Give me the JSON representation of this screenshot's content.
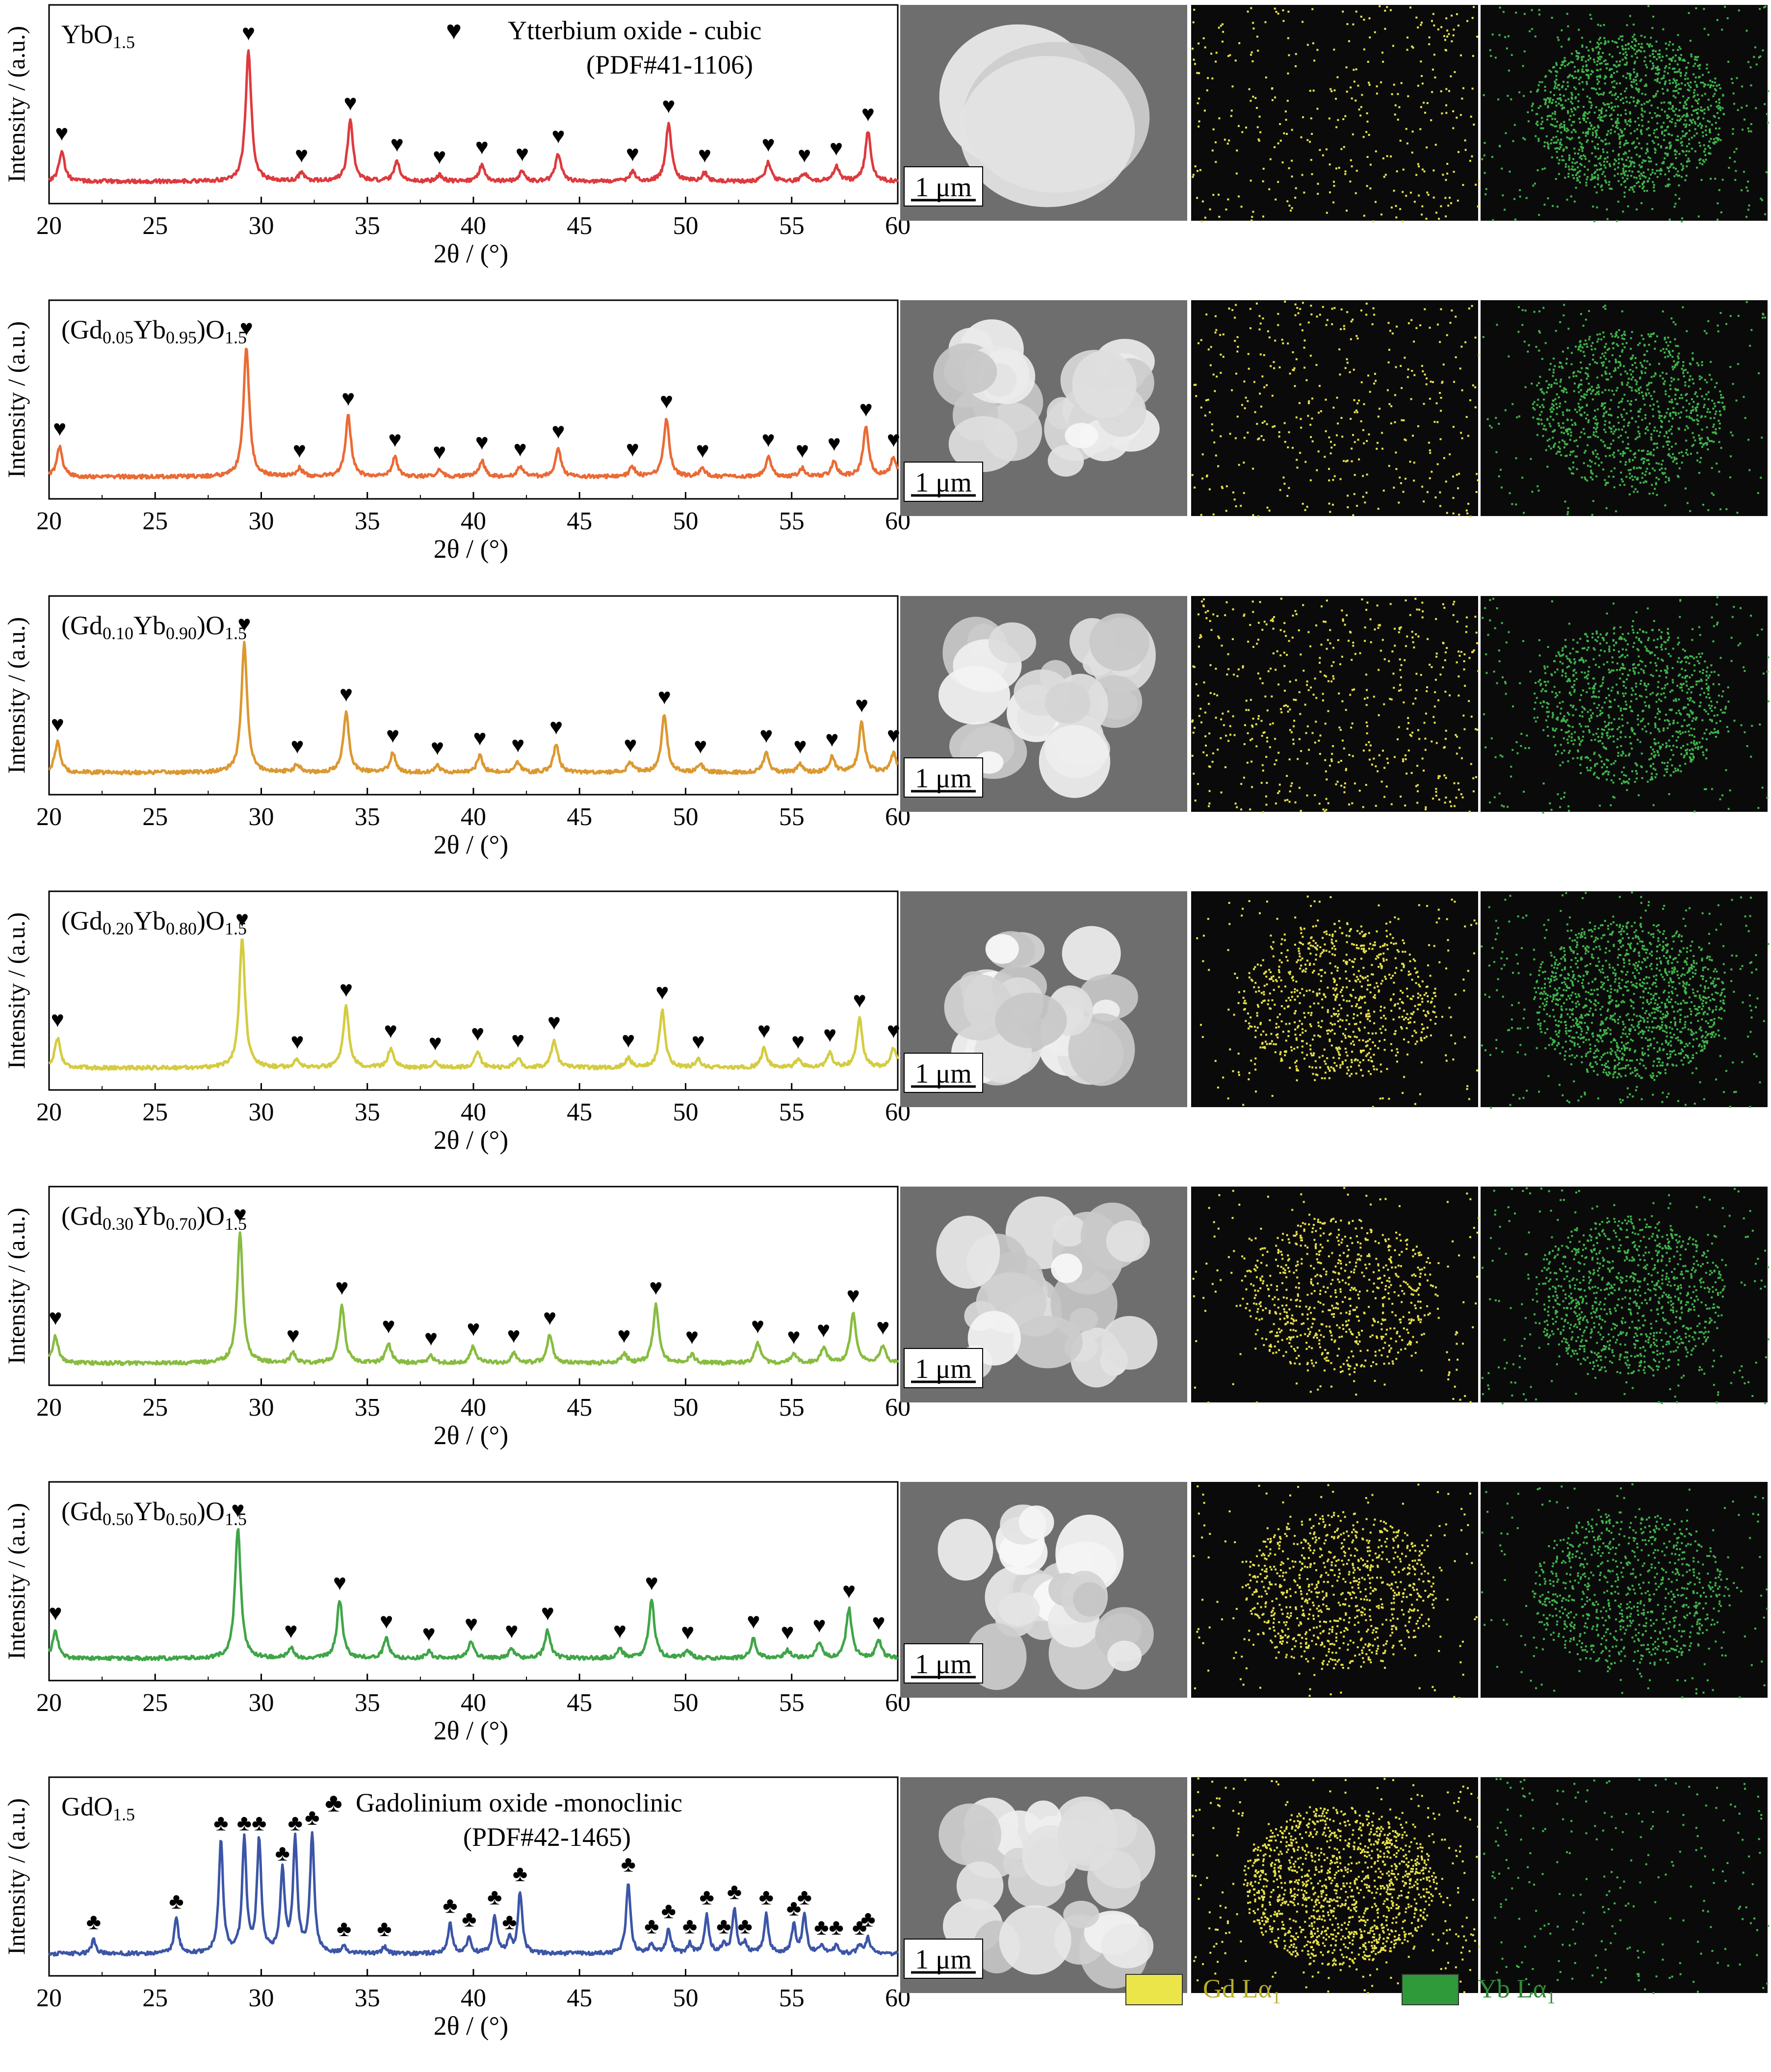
{
  "x_axis_label": "2θ / (°)",
  "y_axis_label": "Intensity / (a.u.)",
  "x_ticks": [
    20,
    25,
    30,
    35,
    40,
    45,
    50,
    55,
    60
  ],
  "scale_bar": "1 μm",
  "marker_legend": {
    "heart_symbol": "♥",
    "heart_line1": "Ytterbium oxide - cubic",
    "heart_line2": "(PDF#41-1106)",
    "club_symbol": "♣",
    "club_line1": "Gadolinium oxide -monoclinic",
    "club_line2": "(PDF#42-1465)"
  },
  "eds_legend": [
    {
      "label": "Gd Lα",
      "sub": "1",
      "color": "#ece54a"
    },
    {
      "label": "Yb Lα",
      "sub": "1",
      "color": "#2f9a3a"
    }
  ],
  "chart_data": [
    {
      "type": "line",
      "sample": "YbO1.5",
      "sample_parts": [
        {
          "t": "YbO",
          "s": "n"
        },
        {
          "t": "1.5",
          "s": "sub"
        }
      ],
      "color": "#dd3a3e",
      "xlim": [
        20,
        60
      ],
      "marker": "heart",
      "gd_density": 0.18,
      "yb_density": 1.0,
      "peaks": [
        [
          20.6,
          0.22
        ],
        [
          29.4,
          0.95
        ],
        [
          31.9,
          0.06
        ],
        [
          34.2,
          0.44
        ],
        [
          36.4,
          0.14
        ],
        [
          38.4,
          0.05
        ],
        [
          40.4,
          0.12
        ],
        [
          42.3,
          0.07
        ],
        [
          44.0,
          0.2
        ],
        [
          47.5,
          0.07
        ],
        [
          49.2,
          0.42
        ],
        [
          50.9,
          0.06
        ],
        [
          53.9,
          0.14
        ],
        [
          55.6,
          0.06
        ],
        [
          57.1,
          0.11
        ],
        [
          58.6,
          0.36
        ]
      ]
    },
    {
      "type": "line",
      "sample": "(Gd0.05Yb0.95)O1.5",
      "sample_parts": [
        {
          "t": "(Gd",
          "s": "n"
        },
        {
          "t": "0.05",
          "s": "sub"
        },
        {
          "t": "Yb",
          "s": "n"
        },
        {
          "t": "0.95",
          "s": "sub"
        },
        {
          "t": ")O",
          "s": "n"
        },
        {
          "t": "1.5",
          "s": "sub"
        }
      ],
      "color": "#ea6a35",
      "xlim": [
        20,
        60
      ],
      "marker": "heart",
      "gd_density": 0.2,
      "yb_density": 0.7,
      "peaks": [
        [
          20.5,
          0.22
        ],
        [
          29.3,
          0.95
        ],
        [
          31.8,
          0.06
        ],
        [
          34.1,
          0.44
        ],
        [
          36.3,
          0.14
        ],
        [
          38.4,
          0.05
        ],
        [
          40.4,
          0.12
        ],
        [
          42.2,
          0.07
        ],
        [
          44.0,
          0.2
        ],
        [
          47.5,
          0.07
        ],
        [
          49.1,
          0.42
        ],
        [
          50.8,
          0.06
        ],
        [
          53.9,
          0.14
        ],
        [
          55.5,
          0.06
        ],
        [
          57.0,
          0.11
        ],
        [
          58.5,
          0.36
        ],
        [
          59.8,
          0.14
        ]
      ]
    },
    {
      "type": "line",
      "sample": "(Gd0.10Yb0.90)O1.5",
      "sample_parts": [
        {
          "t": "(Gd",
          "s": "n"
        },
        {
          "t": "0.10",
          "s": "sub"
        },
        {
          "t": "Yb",
          "s": "n"
        },
        {
          "t": "0.90",
          "s": "sub"
        },
        {
          "t": ")O",
          "s": "n"
        },
        {
          "t": "1.5",
          "s": "sub"
        }
      ],
      "color": "#dc9830",
      "xlim": [
        20,
        60
      ],
      "marker": "heart",
      "gd_density": 0.3,
      "yb_density": 0.7,
      "peaks": [
        [
          20.4,
          0.22
        ],
        [
          29.2,
          0.95
        ],
        [
          31.7,
          0.06
        ],
        [
          34.0,
          0.44
        ],
        [
          36.2,
          0.14
        ],
        [
          38.3,
          0.05
        ],
        [
          40.3,
          0.12
        ],
        [
          42.1,
          0.07
        ],
        [
          43.9,
          0.2
        ],
        [
          47.4,
          0.07
        ],
        [
          49.0,
          0.42
        ],
        [
          50.7,
          0.06
        ],
        [
          53.8,
          0.14
        ],
        [
          55.4,
          0.06
        ],
        [
          56.9,
          0.11
        ],
        [
          58.3,
          0.36
        ],
        [
          59.8,
          0.14
        ]
      ]
    },
    {
      "type": "line",
      "sample": "(Gd0.20Yb0.80)O1.5",
      "sample_parts": [
        {
          "t": "(Gd",
          "s": "n"
        },
        {
          "t": "0.20",
          "s": "sub"
        },
        {
          "t": "Yb",
          "s": "n"
        },
        {
          "t": "0.80",
          "s": "sub"
        },
        {
          "t": ")O",
          "s": "n"
        },
        {
          "t": "1.5",
          "s": "sub"
        }
      ],
      "color": "#d4cc40",
      "xlim": [
        20,
        60
      ],
      "marker": "heart",
      "gd_density": 0.55,
      "yb_density": 1.0,
      "peaks": [
        [
          20.4,
          0.22
        ],
        [
          29.1,
          0.95
        ],
        [
          31.7,
          0.06
        ],
        [
          34.0,
          0.44
        ],
        [
          36.1,
          0.14
        ],
        [
          38.2,
          0.05
        ],
        [
          40.2,
          0.12
        ],
        [
          42.1,
          0.07
        ],
        [
          43.8,
          0.2
        ],
        [
          47.3,
          0.07
        ],
        [
          48.9,
          0.42
        ],
        [
          50.6,
          0.06
        ],
        [
          53.7,
          0.14
        ],
        [
          55.3,
          0.06
        ],
        [
          56.8,
          0.11
        ],
        [
          58.2,
          0.36
        ],
        [
          59.8,
          0.14
        ]
      ]
    },
    {
      "type": "line",
      "sample": "(Gd0.30Yb0.70)O1.5",
      "sample_parts": [
        {
          "t": "(Gd",
          "s": "n"
        },
        {
          "t": "0.30",
          "s": "sub"
        },
        {
          "t": "Yb",
          "s": "n"
        },
        {
          "t": "0.70",
          "s": "sub"
        },
        {
          "t": ")O",
          "s": "n"
        },
        {
          "t": "1.5",
          "s": "sub"
        }
      ],
      "color": "#88bc40",
      "xlim": [
        20,
        60
      ],
      "marker": "heart",
      "gd_density": 0.5,
      "yb_density": 0.75,
      "peaks": [
        [
          20.3,
          0.2
        ],
        [
          29.0,
          0.95
        ],
        [
          31.5,
          0.07
        ],
        [
          33.8,
          0.42
        ],
        [
          36.0,
          0.14
        ],
        [
          38.0,
          0.05
        ],
        [
          40.0,
          0.12
        ],
        [
          41.9,
          0.07
        ],
        [
          43.6,
          0.2
        ],
        [
          47.1,
          0.07
        ],
        [
          48.6,
          0.42
        ],
        [
          50.3,
          0.06
        ],
        [
          53.4,
          0.14
        ],
        [
          55.1,
          0.06
        ],
        [
          56.5,
          0.11
        ],
        [
          57.9,
          0.36
        ],
        [
          59.3,
          0.13
        ]
      ]
    },
    {
      "type": "line",
      "sample": "(Gd0.50Yb0.50)O1.5",
      "sample_parts": [
        {
          "t": "(Gd",
          "s": "n"
        },
        {
          "t": "0.50",
          "s": "sub"
        },
        {
          "t": "Yb",
          "s": "n"
        },
        {
          "t": "0.50",
          "s": "sub"
        },
        {
          "t": ")O",
          "s": "n"
        },
        {
          "t": "1.5",
          "s": "sub"
        }
      ],
      "color": "#3fa548",
      "xlim": [
        20,
        60
      ],
      "marker": "heart",
      "gd_density": 0.6,
      "yb_density": 0.6,
      "peaks": [
        [
          20.3,
          0.2
        ],
        [
          28.9,
          0.95
        ],
        [
          31.4,
          0.07
        ],
        [
          33.7,
          0.42
        ],
        [
          35.9,
          0.14
        ],
        [
          37.9,
          0.05
        ],
        [
          39.9,
          0.12
        ],
        [
          41.8,
          0.07
        ],
        [
          43.5,
          0.2
        ],
        [
          46.9,
          0.07
        ],
        [
          48.4,
          0.42
        ],
        [
          50.1,
          0.06
        ],
        [
          53.2,
          0.14
        ],
        [
          54.8,
          0.06
        ],
        [
          56.3,
          0.11
        ],
        [
          57.7,
          0.36
        ],
        [
          59.1,
          0.13
        ]
      ]
    },
    {
      "type": "line",
      "sample": "GdO1.5",
      "sample_parts": [
        {
          "t": "GdO",
          "s": "n"
        },
        {
          "t": "1.5",
          "s": "sub"
        }
      ],
      "color": "#3b55a7",
      "xlim": [
        20,
        60
      ],
      "marker": "club",
      "gd_density": 1.0,
      "yb_density": 0.08,
      "peaks": [
        [
          22.1,
          0.1
        ],
        [
          26.0,
          0.25
        ],
        [
          28.1,
          0.82
        ],
        [
          29.2,
          0.82
        ],
        [
          29.9,
          0.82
        ],
        [
          31.0,
          0.6
        ],
        [
          31.6,
          0.82
        ],
        [
          32.4,
          0.86
        ],
        [
          33.9,
          0.05
        ],
        [
          35.8,
          0.05
        ],
        [
          38.9,
          0.22
        ],
        [
          39.8,
          0.12
        ],
        [
          41.0,
          0.28
        ],
        [
          41.7,
          0.1
        ],
        [
          42.2,
          0.45
        ],
        [
          47.3,
          0.52
        ],
        [
          48.4,
          0.07
        ],
        [
          49.2,
          0.18
        ],
        [
          50.2,
          0.07
        ],
        [
          51.0,
          0.28
        ],
        [
          51.8,
          0.07
        ],
        [
          52.3,
          0.32
        ],
        [
          52.8,
          0.07
        ],
        [
          53.8,
          0.28
        ],
        [
          55.1,
          0.2
        ],
        [
          55.6,
          0.28
        ],
        [
          56.4,
          0.06
        ],
        [
          57.1,
          0.06
        ],
        [
          58.2,
          0.06
        ],
        [
          58.6,
          0.12
        ]
      ]
    }
  ]
}
